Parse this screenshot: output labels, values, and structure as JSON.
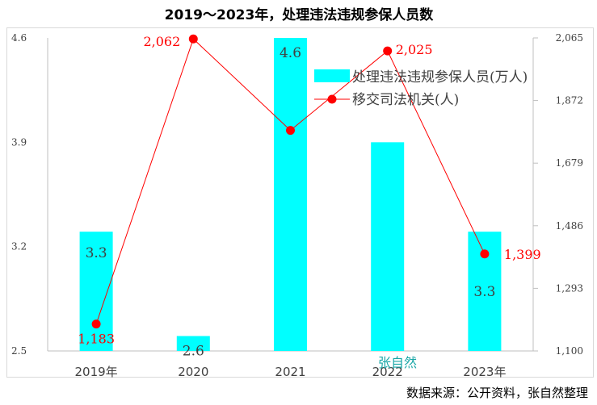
{
  "chart_data": {
    "type": "bar+line",
    "title": "2019～2023年，处理违法违规参保人员数",
    "categories": [
      "2019年",
      "2020",
      "2021",
      "2022",
      "2023年"
    ],
    "series": [
      {
        "name": "处理违法违规参保人员(万人)",
        "type": "bar",
        "axis": "left",
        "color": "#00ffff",
        "values": [
          3.3,
          2.6,
          4.6,
          3.9,
          3.3
        ],
        "data_labels": [
          "3.3",
          "2.6",
          "4.6",
          null,
          "3.3"
        ]
      },
      {
        "name": "移交司法机关(人)",
        "type": "line",
        "axis": "right",
        "color": "#ff0000",
        "values": [
          1183,
          2062,
          1780,
          2025,
          1399
        ],
        "data_labels": [
          "1,183",
          "2,062",
          null,
          "2,025",
          "1,399"
        ]
      }
    ],
    "y_left": {
      "min": 2.5,
      "max": 4.6,
      "ticks": [
        2.5,
        3.2,
        3.9,
        4.6
      ],
      "tick_labels": [
        "2.5",
        "3.2",
        "3.9",
        "4.6"
      ]
    },
    "y_right": {
      "min": 1100,
      "max": 2065,
      "ticks": [
        1100,
        1293,
        1486,
        1679,
        1872,
        2065
      ],
      "tick_labels": [
        "1,100",
        "1,293",
        "1,486",
        "1,679",
        "1,872",
        "2,065"
      ]
    },
    "legend_position": "top-right",
    "watermark": "张自然",
    "source": "数据来源：公开资料，张自然整理"
  }
}
